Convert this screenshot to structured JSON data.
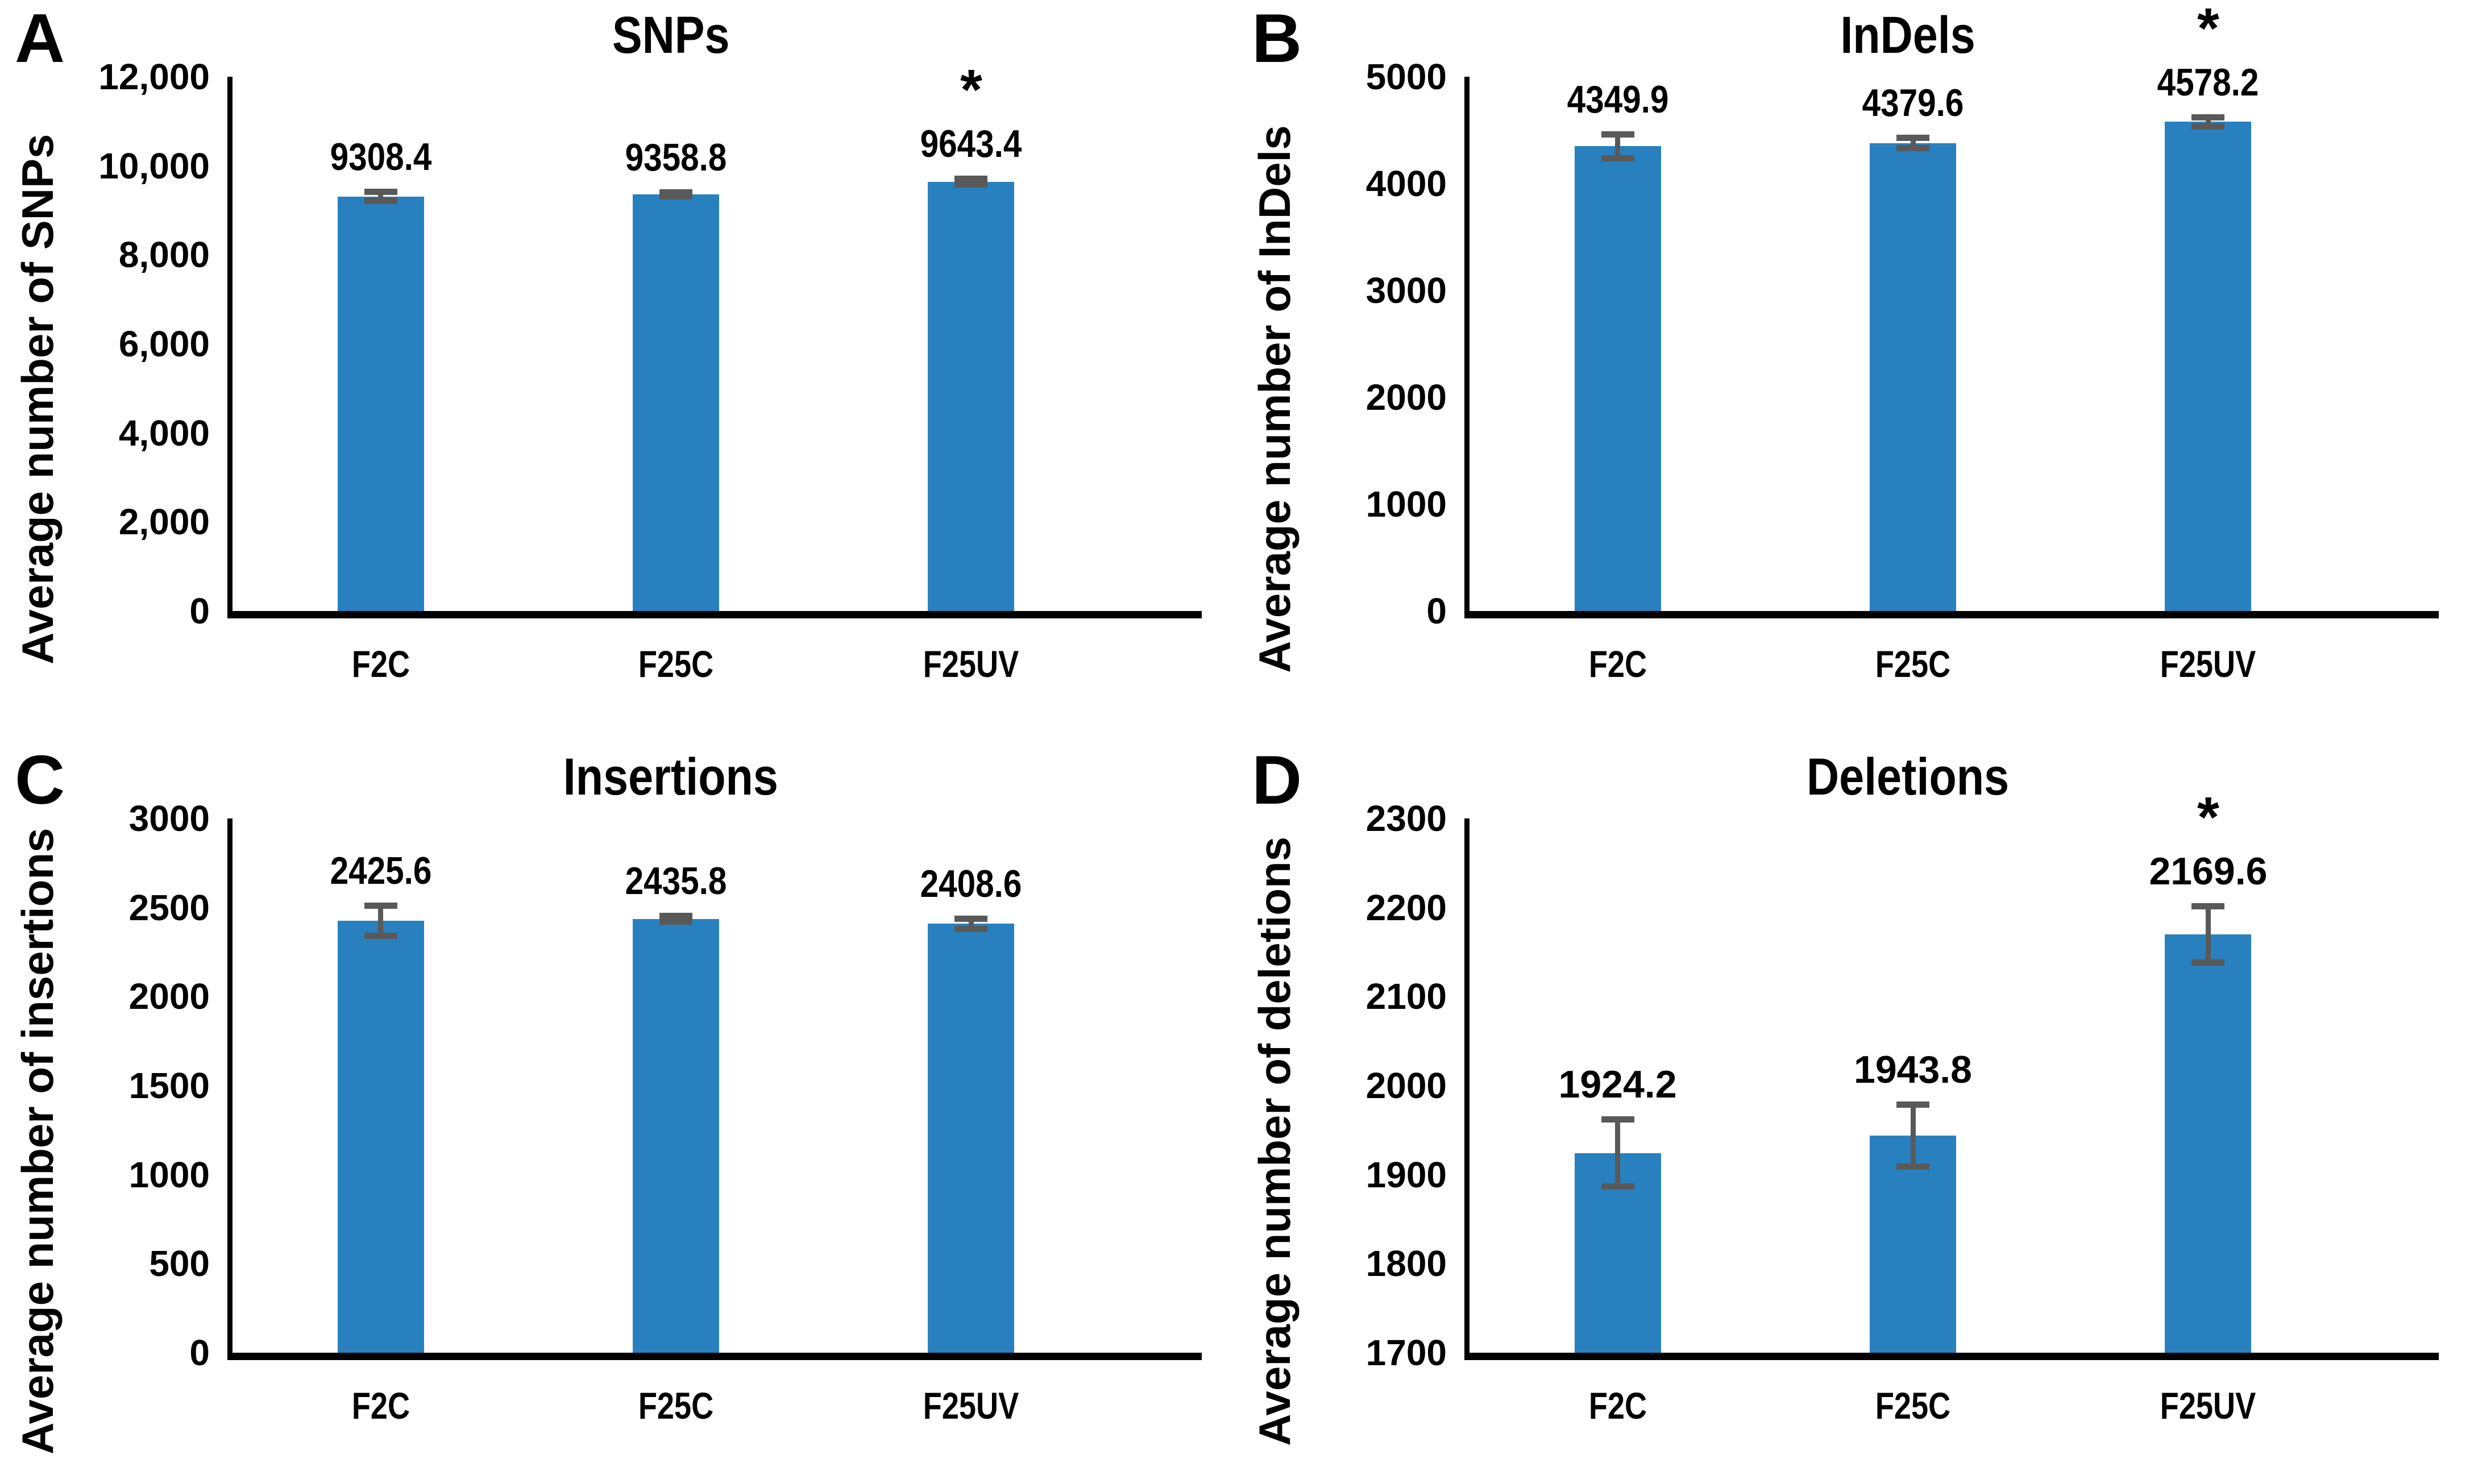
{
  "figure": {
    "background": "#ffffff"
  },
  "colors": {
    "bar": "#2980BF",
    "error_bar": "#595959",
    "axis": "#000000",
    "text": "#000000"
  },
  "chart_data": [
    {
      "panel_label": "A",
      "type": "bar",
      "title": "SNPs",
      "ylabel": "Average number of SNPs",
      "categories": [
        "F2C",
        "F25C",
        "F25UV"
      ],
      "values": [
        9308.4,
        9358.8,
        9643.4
      ],
      "data_labels": [
        "9308.4",
        "9358.8",
        "9643.4"
      ],
      "errors": [
        110,
        55,
        70
      ],
      "significance": [
        "",
        "",
        "*"
      ],
      "ylim": [
        0,
        12000
      ],
      "ytick_values": [
        0,
        2000,
        4000,
        6000,
        8000,
        10000,
        12000
      ],
      "ytick_labels": [
        "0",
        "2,000",
        "4,000",
        "6,000",
        "8,000",
        "10,000",
        "12,000"
      ],
      "grid": false,
      "legend": null,
      "data_label_condensed": true
    },
    {
      "panel_label": "B",
      "type": "bar",
      "title": "InDels",
      "ylabel": "Average number of InDels",
      "categories": [
        "F2C",
        "F25C",
        "F25UV"
      ],
      "values": [
        4349.9,
        4379.6,
        4578.2
      ],
      "data_labels": [
        "4349.9",
        "4379.6",
        "4578.2"
      ],
      "errors": [
        115,
        50,
        45
      ],
      "significance": [
        "",
        "",
        "*"
      ],
      "ylim": [
        0,
        5000
      ],
      "ytick_values": [
        0,
        1000,
        2000,
        3000,
        4000,
        5000
      ],
      "ytick_labels": [
        "0",
        "1000",
        "2000",
        "3000",
        "4000",
        "5000"
      ],
      "grid": false,
      "legend": null,
      "data_label_condensed": true
    },
    {
      "panel_label": "C",
      "type": "bar",
      "title": "Insertions",
      "ylabel": "Average number of insertions",
      "categories": [
        "F2C",
        "F25C",
        "F25UV"
      ],
      "values": [
        2425.6,
        2435.8,
        2408.6
      ],
      "data_labels": [
        "2425.6",
        "2435.8",
        "2408.6"
      ],
      "errors": [
        85,
        18,
        30
      ],
      "significance": [
        "",
        "",
        ""
      ],
      "ylim": [
        0,
        3000
      ],
      "ytick_values": [
        0,
        500,
        1000,
        1500,
        2000,
        2500,
        3000
      ],
      "ytick_labels": [
        "0",
        "500",
        "1000",
        "1500",
        "2000",
        "2500",
        "3000"
      ],
      "grid": false,
      "legend": null,
      "data_label_condensed": true
    },
    {
      "panel_label": "D",
      "type": "bar",
      "title": "Deletions",
      "ylabel": "Average number of deletions",
      "categories": [
        "F2C",
        "F25C",
        "F25UV"
      ],
      "values": [
        1924.2,
        1943.8,
        2169.6
      ],
      "data_labels": [
        "1924.2",
        "1943.8",
        "2169.6"
      ],
      "errors": [
        38,
        35,
        32
      ],
      "significance": [
        "",
        "",
        "*"
      ],
      "ylim": [
        1700,
        2300
      ],
      "ytick_values": [
        1700,
        1800,
        1900,
        2000,
        2100,
        2200,
        2300
      ],
      "ytick_labels": [
        "1700",
        "1800",
        "1900",
        "2000",
        "2100",
        "2200",
        "2300"
      ],
      "grid": false,
      "legend": null,
      "data_label_condensed": false
    }
  ]
}
